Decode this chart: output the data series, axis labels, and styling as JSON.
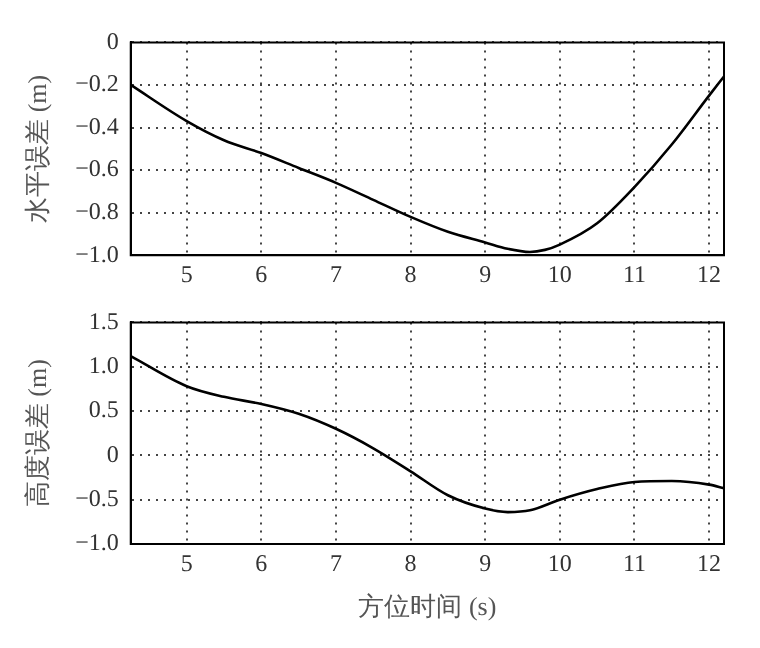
{
  "chart_data": [
    {
      "type": "line",
      "ylabel": "水平误差 (m)",
      "x": [
        4.25,
        5,
        5.5,
        6,
        6.5,
        7,
        7.5,
        8,
        8.5,
        9,
        9.3,
        9.6,
        9.8,
        10,
        10.5,
        11,
        11.5,
        12,
        12.2
      ],
      "series": [
        {
          "color": "#000000",
          "values": [
            -0.2,
            -0.37,
            -0.46,
            -0.52,
            -0.59,
            -0.66,
            -0.74,
            -0.82,
            -0.89,
            -0.94,
            -0.97,
            -0.985,
            -0.975,
            -0.95,
            -0.85,
            -0.68,
            -0.48,
            -0.25,
            -0.16
          ]
        }
      ],
      "xlim": [
        4.25,
        12.2
      ],
      "xticks": [
        5,
        6,
        7,
        8,
        9,
        10,
        11,
        12
      ],
      "ylim": [
        -1.0,
        0
      ],
      "yticks": [
        {
          "value": 0,
          "label": "0"
        },
        {
          "value": -0.2,
          "label": "−0.2"
        },
        {
          "value": -0.4,
          "label": "−0.4"
        },
        {
          "value": -0.6,
          "label": "−0.6"
        },
        {
          "value": -0.8,
          "label": "−0.8"
        },
        {
          "value": -1.0,
          "label": "−1.0"
        }
      ],
      "grid": true,
      "legend": false,
      "line_style": "solid",
      "marker": "none"
    },
    {
      "type": "line",
      "ylabel": "高度误差 (m)",
      "xlabel": "方位时间 (s)",
      "x": [
        4.25,
        5,
        5.5,
        6,
        6.5,
        7,
        7.5,
        8,
        8.5,
        9,
        9.3,
        9.6,
        10,
        10.5,
        11,
        11.5,
        12,
        12.2
      ],
      "series": [
        {
          "color": "#000000",
          "values": [
            1.12,
            0.78,
            0.66,
            0.58,
            0.47,
            0.3,
            0.08,
            -0.18,
            -0.45,
            -0.6,
            -0.64,
            -0.62,
            -0.5,
            -0.38,
            -0.3,
            -0.29,
            -0.33,
            -0.37
          ]
        }
      ],
      "xlim": [
        4.25,
        12.2
      ],
      "xticks": [
        5,
        6,
        7,
        8,
        9,
        10,
        11,
        12
      ],
      "ylim": [
        -1.0,
        1.5
      ],
      "yticks": [
        {
          "value": 1.5,
          "label": "1.5"
        },
        {
          "value": 1.0,
          "label": "1.0"
        },
        {
          "value": 0.5,
          "label": "0.5"
        },
        {
          "value": 0,
          "label": "0"
        },
        {
          "value": -0.5,
          "label": "−0.5"
        },
        {
          "value": -1.0,
          "label": "−1.0"
        }
      ],
      "grid": true,
      "legend": false,
      "line_style": "solid",
      "marker": "none"
    }
  ]
}
